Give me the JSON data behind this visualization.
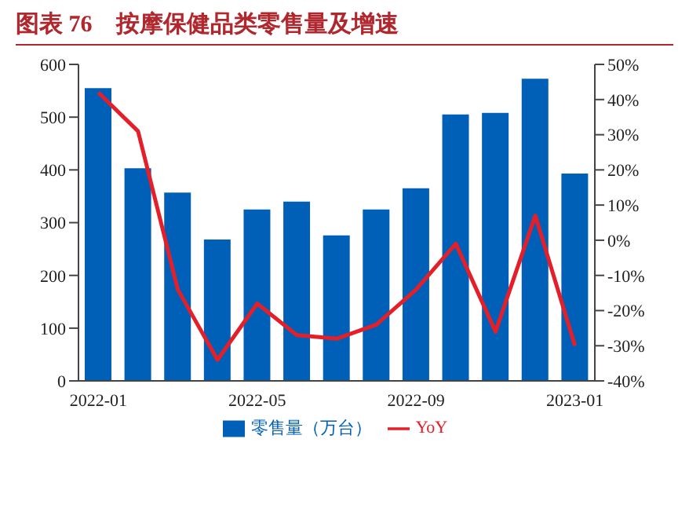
{
  "chart_data": {
    "type": "bar",
    "title": "图表 76　按摩保健品类零售量及增速",
    "categories": [
      "2022-01",
      null,
      null,
      null,
      "2022-05",
      null,
      null,
      null,
      "2022-09",
      null,
      null,
      null,
      "2023-01"
    ],
    "series": [
      {
        "name": "零售量（万台）",
        "color": "#0060b8",
        "values": [
          555,
          403,
          357,
          268,
          325,
          340,
          276,
          325,
          365,
          505,
          508,
          573,
          393
        ]
      },
      {
        "name": "YoY",
        "type": "line",
        "axis": "y2",
        "color": "#e3202a",
        "values": [
          42,
          31,
          -14,
          -34,
          -18,
          -27,
          -28,
          -24,
          -14,
          -1,
          -26,
          7,
          -30
        ]
      }
    ],
    "ylim": [
      0,
      600
    ],
    "yticks": [
      0,
      100,
      200,
      300,
      400,
      500,
      600
    ],
    "y2lim": [
      -40,
      50
    ],
    "y2ticks": [
      {
        "value": -40,
        "label": "-40%"
      },
      {
        "value": -30,
        "label": "-30%"
      },
      {
        "value": -20,
        "label": "-20%"
      },
      {
        "value": -10,
        "label": "-10%"
      },
      {
        "value": 0,
        "label": "0%"
      },
      {
        "value": 10,
        "label": "10%"
      },
      {
        "value": 20,
        "label": "20%"
      },
      {
        "value": 30,
        "label": "30%"
      },
      {
        "value": 40,
        "label": "40%"
      },
      {
        "value": 50,
        "label": "50%"
      }
    ],
    "legend": "bottom",
    "grid": false,
    "marker": "none"
  }
}
